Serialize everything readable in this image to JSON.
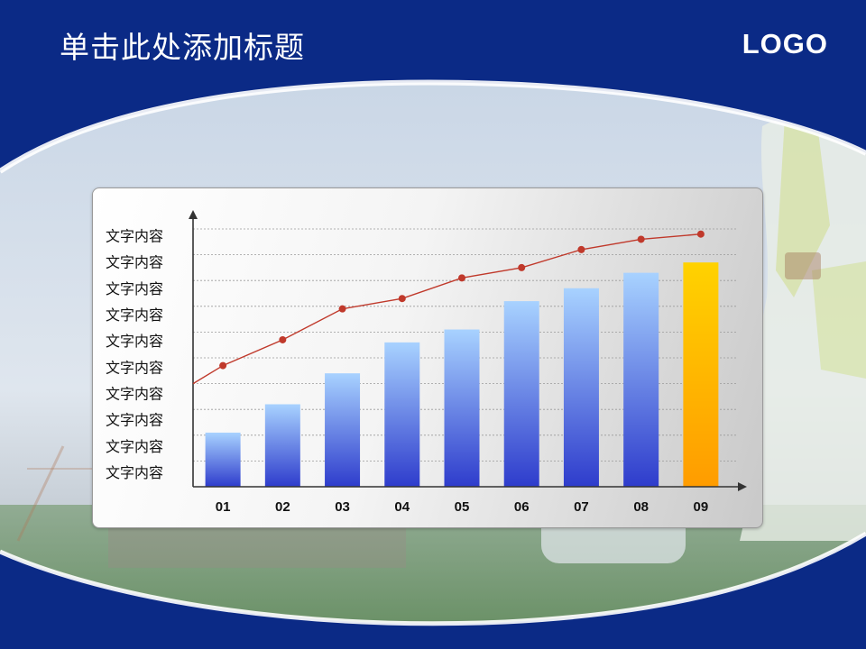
{
  "slide": {
    "title": "单击此处添加标题",
    "logo_text": "LOGO"
  },
  "colors": {
    "frame_blue": "#0b2a86",
    "bar_top": "#a8d2ff",
    "bar_bottom": "#2e3ccc",
    "highlight_top": "#ffd200",
    "highlight_bottom": "#ff9c00",
    "line": "#c0392b"
  },
  "chart_data": {
    "type": "bar",
    "categories": [
      "01",
      "02",
      "03",
      "04",
      "05",
      "06",
      "07",
      "08",
      "09"
    ],
    "y_tick_labels": [
      "文字内容",
      "文字内容",
      "文字内容",
      "文字内容",
      "文字内容",
      "文字内容",
      "文字内容",
      "文字内容",
      "文字内容",
      "文字内容"
    ],
    "ylim": [
      0,
      10
    ],
    "grid": true,
    "highlighted_category": "09",
    "series": [
      {
        "type": "bar",
        "values": [
          2.1,
          3.2,
          4.4,
          5.6,
          6.1,
          7.2,
          7.7,
          8.3,
          8.7
        ]
      },
      {
        "type": "line",
        "values": [
          4.7,
          5.7,
          6.9,
          7.3,
          8.1,
          8.5,
          9.2,
          9.6,
          9.8
        ],
        "line_start": 4.0
      }
    ]
  }
}
